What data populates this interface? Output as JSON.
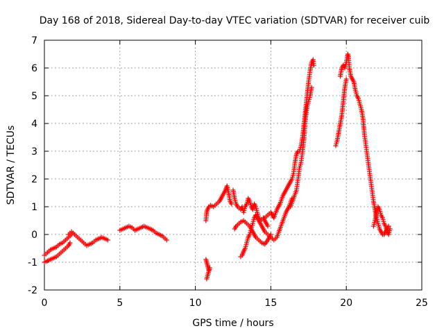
{
  "chart_data": {
    "type": "scatter",
    "title": "Day 168 of 2018, Sidereal Day-to-day VTEC variation (SDTVAR) for receiver cuib",
    "xlabel": "GPS time / hours",
    "ylabel": "SDTVAR / TECUs",
    "xlim": [
      0,
      25
    ],
    "ylim": [
      -2,
      7
    ],
    "xticks": [
      "0",
      "5",
      "10",
      "15",
      "20",
      "25"
    ],
    "yticks": [
      "-2",
      "-1",
      "0",
      "1",
      "2",
      "3",
      "4",
      "5",
      "6",
      "7"
    ],
    "grid": true,
    "marker": "+",
    "series": [
      {
        "name": "SDTVAR",
        "color": "#ff0000",
        "tracks": [
          [
            [
              0.0,
              -0.75
            ],
            [
              0.2,
              -0.65
            ],
            [
              0.4,
              -0.55
            ],
            [
              0.6,
              -0.5
            ],
            [
              0.8,
              -0.45
            ],
            [
              1.0,
              -0.35
            ],
            [
              1.2,
              -0.3
            ],
            [
              1.4,
              -0.2
            ],
            [
              1.6,
              -0.1
            ],
            [
              1.8,
              0.0
            ],
            [
              1.9,
              0.05
            ]
          ],
          [
            [
              0.0,
              -1.0
            ],
            [
              0.2,
              -0.95
            ],
            [
              0.4,
              -0.9
            ],
            [
              0.6,
              -0.85
            ],
            [
              0.8,
              -0.8
            ],
            [
              1.0,
              -0.7
            ],
            [
              1.2,
              -0.6
            ],
            [
              1.4,
              -0.5
            ],
            [
              1.6,
              -0.4
            ],
            [
              1.7,
              -0.3
            ]
          ],
          [
            [
              1.6,
              0.0
            ],
            [
              1.7,
              0.05
            ],
            [
              1.8,
              0.1
            ],
            [
              1.9,
              0.05
            ],
            [
              2.0,
              0.0
            ],
            [
              2.2,
              -0.1
            ],
            [
              2.4,
              -0.2
            ],
            [
              2.6,
              -0.3
            ],
            [
              2.8,
              -0.4
            ],
            [
              3.0,
              -0.35
            ],
            [
              3.2,
              -0.3
            ],
            [
              3.4,
              -0.2
            ],
            [
              3.6,
              -0.15
            ],
            [
              3.8,
              -0.1
            ],
            [
              4.0,
              -0.15
            ],
            [
              4.2,
              -0.2
            ]
          ],
          [
            [
              5.0,
              0.15
            ],
            [
              5.2,
              0.2
            ],
            [
              5.4,
              0.25
            ],
            [
              5.6,
              0.3
            ],
            [
              5.8,
              0.25
            ],
            [
              6.0,
              0.15
            ],
            [
              6.2,
              0.2
            ],
            [
              6.4,
              0.25
            ],
            [
              6.6,
              0.3
            ],
            [
              6.8,
              0.25
            ],
            [
              7.0,
              0.2
            ],
            [
              7.2,
              0.15
            ],
            [
              7.4,
              0.05
            ],
            [
              7.6,
              0.0
            ],
            [
              7.8,
              -0.05
            ],
            [
              8.0,
              -0.15
            ],
            [
              8.1,
              -0.2
            ]
          ],
          [
            [
              10.7,
              -0.9
            ],
            [
              10.75,
              -1.0
            ],
            [
              10.8,
              -1.1
            ],
            [
              10.85,
              -1.2
            ],
            [
              10.9,
              -1.3
            ],
            [
              10.95,
              -1.2
            ],
            [
              10.75,
              -1.6
            ]
          ],
          [
            [
              10.7,
              0.5
            ],
            [
              10.75,
              0.8
            ],
            [
              10.8,
              0.9
            ],
            [
              10.9,
              1.0
            ],
            [
              11.0,
              1.05
            ],
            [
              11.2,
              1.0
            ],
            [
              11.4,
              1.1
            ],
            [
              11.6,
              1.2
            ],
            [
              11.8,
              1.4
            ],
            [
              12.0,
              1.6
            ],
            [
              12.1,
              1.75
            ],
            [
              12.2,
              1.5
            ],
            [
              12.3,
              1.2
            ],
            [
              12.4,
              1.1
            ]
          ],
          [
            [
              12.5,
              1.6
            ],
            [
              12.6,
              1.3
            ],
            [
              12.7,
              1.1
            ],
            [
              12.8,
              1.0
            ],
            [
              12.9,
              0.95
            ],
            [
              13.0,
              0.9
            ],
            [
              13.1,
              1.0
            ],
            [
              13.2,
              0.8
            ],
            [
              13.3,
              1.0
            ],
            [
              13.4,
              1.1
            ],
            [
              13.5,
              1.3
            ],
            [
              13.6,
              1.2
            ],
            [
              13.7,
              1.0
            ],
            [
              13.8,
              0.9
            ],
            [
              13.9,
              1.1
            ],
            [
              14.0,
              1.0
            ],
            [
              14.1,
              0.8
            ],
            [
              14.2,
              0.6
            ],
            [
              14.3,
              0.5
            ],
            [
              14.4,
              0.55
            ],
            [
              14.5,
              0.6
            ],
            [
              14.6,
              0.5
            ],
            [
              14.7,
              0.4
            ],
            [
              14.8,
              0.3
            ]
          ],
          [
            [
              12.6,
              0.2
            ],
            [
              12.7,
              0.3
            ],
            [
              12.8,
              0.35
            ],
            [
              12.9,
              0.4
            ],
            [
              13.0,
              0.45
            ],
            [
              13.2,
              0.5
            ],
            [
              13.4,
              0.4
            ],
            [
              13.6,
              0.3
            ],
            [
              13.8,
              0.1
            ],
            [
              14.0,
              -0.1
            ],
            [
              14.2,
              -0.2
            ],
            [
              14.4,
              -0.3
            ],
            [
              14.6,
              -0.35
            ],
            [
              14.8,
              -0.2
            ],
            [
              15.0,
              0.0
            ]
          ],
          [
            [
              13.0,
              -0.8
            ],
            [
              13.1,
              -0.75
            ],
            [
              13.2,
              -0.6
            ],
            [
              13.3,
              -0.5
            ],
            [
              13.4,
              -0.3
            ],
            [
              13.5,
              -0.1
            ],
            [
              13.6,
              0.0
            ],
            [
              13.7,
              0.2
            ],
            [
              13.8,
              0.4
            ],
            [
              13.9,
              0.6
            ],
            [
              14.0,
              0.7
            ],
            [
              14.2,
              0.5
            ],
            [
              14.4,
              0.3
            ],
            [
              14.6,
              0.1
            ],
            [
              14.8,
              0.0
            ],
            [
              15.0,
              -0.1
            ],
            [
              15.2,
              -0.2
            ],
            [
              15.4,
              -0.1
            ],
            [
              15.6,
              0.2
            ],
            [
              15.8,
              0.5
            ],
            [
              16.0,
              0.8
            ],
            [
              16.2,
              1.0
            ],
            [
              16.4,
              1.3
            ]
          ],
          [
            [
              14.6,
              0.6
            ],
            [
              14.8,
              0.7
            ],
            [
              15.0,
              0.8
            ],
            [
              15.2,
              0.6
            ],
            [
              15.4,
              0.9
            ],
            [
              15.6,
              1.1
            ],
            [
              15.8,
              1.4
            ],
            [
              16.0,
              1.6
            ],
            [
              16.2,
              1.8
            ],
            [
              16.4,
              2.0
            ],
            [
              16.5,
              2.2
            ],
            [
              16.6,
              2.6
            ],
            [
              16.7,
              2.9
            ],
            [
              16.8,
              3.0
            ],
            [
              16.9,
              3.0
            ],
            [
              17.0,
              3.2
            ],
            [
              17.1,
              3.5
            ],
            [
              17.2,
              4.0
            ],
            [
              17.3,
              4.5
            ],
            [
              17.4,
              5.0
            ],
            [
              17.5,
              5.5
            ],
            [
              17.6,
              5.9
            ],
            [
              17.7,
              6.2
            ],
            [
              17.8,
              6.3
            ],
            [
              17.85,
              6.1
            ]
          ],
          [
            [
              16.3,
              1.0
            ],
            [
              16.5,
              1.3
            ],
            [
              16.7,
              1.6
            ],
            [
              16.8,
              2.0
            ],
            [
              16.9,
              2.4
            ],
            [
              17.0,
              2.6
            ],
            [
              17.1,
              3.0
            ],
            [
              17.2,
              3.5
            ],
            [
              17.3,
              4.2
            ],
            [
              17.4,
              4.6
            ],
            [
              17.5,
              4.8
            ],
            [
              17.6,
              5.0
            ],
            [
              17.7,
              5.3
            ]
          ],
          [
            [
              19.3,
              3.2
            ],
            [
              19.4,
              3.4
            ],
            [
              19.5,
              3.7
            ],
            [
              19.6,
              4.0
            ],
            [
              19.7,
              4.3
            ],
            [
              19.8,
              4.8
            ],
            [
              19.9,
              5.3
            ],
            [
              20.0,
              5.6
            ]
          ],
          [
            [
              19.6,
              5.7
            ],
            [
              19.7,
              6.0
            ],
            [
              19.8,
              6.1
            ],
            [
              19.9,
              6.0
            ],
            [
              20.0,
              6.2
            ],
            [
              20.1,
              6.5
            ],
            [
              20.15,
              6.4
            ],
            [
              20.2,
              6.0
            ],
            [
              20.3,
              5.7
            ],
            [
              20.4,
              5.6
            ],
            [
              20.5,
              5.5
            ],
            [
              20.6,
              5.2
            ],
            [
              20.7,
              5.0
            ],
            [
              20.8,
              4.9
            ],
            [
              20.9,
              4.7
            ],
            [
              21.0,
              4.5
            ],
            [
              21.1,
              4.2
            ],
            [
              21.2,
              3.6
            ],
            [
              21.3,
              3.2
            ],
            [
              21.4,
              2.8
            ],
            [
              21.5,
              2.4
            ],
            [
              21.6,
              2.0
            ],
            [
              21.7,
              1.6
            ],
            [
              21.8,
              1.2
            ],
            [
              21.9,
              0.9
            ],
            [
              22.0,
              0.6
            ],
            [
              22.1,
              0.4
            ],
            [
              22.2,
              0.2
            ],
            [
              22.3,
              0.1
            ],
            [
              22.4,
              0.0
            ],
            [
              22.5,
              0.0
            ],
            [
              22.6,
              0.1
            ],
            [
              22.7,
              0.2
            ],
            [
              22.8,
              0.3
            ]
          ],
          [
            [
              21.8,
              0.3
            ],
            [
              21.9,
              0.5
            ],
            [
              22.0,
              0.8
            ],
            [
              22.1,
              1.0
            ],
            [
              22.2,
              0.9
            ],
            [
              22.3,
              0.7
            ],
            [
              22.4,
              0.6
            ],
            [
              22.5,
              0.4
            ],
            [
              22.6,
              0.3
            ],
            [
              22.7,
              0.1
            ],
            [
              22.8,
              0.0
            ],
            [
              22.9,
              0.2
            ]
          ]
        ]
      }
    ]
  }
}
